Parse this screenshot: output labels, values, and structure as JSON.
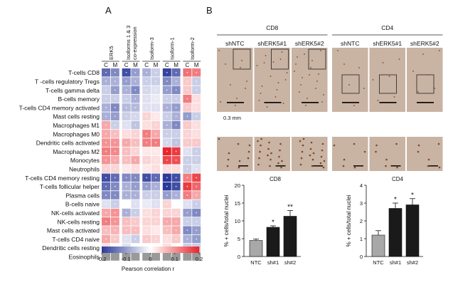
{
  "panel_a": {
    "letter": "A",
    "columns": [
      "ERK5",
      "Isoforms 1 & 3 co-expression",
      "Isoform-3",
      "Isoform-1",
      "Isoform-2"
    ],
    "subcolumns": [
      "C",
      "M"
    ],
    "rows": [
      "T-cells CD8",
      "T -cells regulatory Tregs",
      "T-cells gamma delta",
      "B-cells memory",
      "T-cells CD4 memory activated",
      "Mast cells resting",
      "Macrophages M1",
      "Macrophages M0",
      "Dendritic cells activated",
      "Macrophages M2",
      "Monocytes",
      "Neutrophils",
      "T-cells CD4 memory resting",
      "T-cells follicular helper",
      "Plasma cells",
      "B-cells naive",
      "NK-cells activated",
      "NK-cells resting",
      "Mast cells activated",
      "T-cells CD4 naive",
      "Dendritic cells resting",
      "Eosinophils"
    ],
    "colorbar": {
      "ticks": [
        "-0.2",
        "-0.1",
        "0",
        "0.1",
        "0.2"
      ],
      "label": "Pearson correlation r",
      "low_color": "#2b3a9a",
      "mid_color": "#ffffff",
      "high_color": "#e8262b",
      "na_color": "#999999"
    },
    "chart_data": {
      "type": "heatmap",
      "xlabel": "",
      "ylabel": "",
      "value_range": [
        -0.2,
        0.2
      ],
      "columns": [
        "ERK5 C",
        "ERK5 M",
        "Iso1&3 C",
        "Iso1&3 M",
        "Iso3 C",
        "Iso3 M",
        "Iso1 C",
        "Iso1 M",
        "Iso2 C",
        "Iso2 M"
      ],
      "values": [
        [
          -0.15,
          -0.12,
          -0.18,
          -0.1,
          -0.08,
          -0.05,
          -0.19,
          -0.15,
          0.13,
          0.12
        ],
        [
          -0.08,
          -0.08,
          -0.1,
          -0.08,
          -0.05,
          -0.05,
          -0.12,
          -0.08,
          0.05,
          -0.05
        ],
        [
          -0.05,
          -0.1,
          -0.08,
          -0.12,
          -0.04,
          -0.03,
          -0.1,
          -0.12,
          0.05,
          -0.05
        ],
        [
          -0.05,
          -0.05,
          -0.05,
          -0.08,
          -0.03,
          -0.02,
          -0.05,
          -0.05,
          0.12,
          0.03
        ],
        [
          -0.08,
          -0.12,
          -0.07,
          -0.07,
          -0.03,
          -0.03,
          -0.08,
          -0.1,
          0.05,
          0.03
        ],
        [
          -0.08,
          -0.1,
          -0.05,
          -0.04,
          0.04,
          0.02,
          -0.05,
          -0.08,
          -0.1,
          -0.05
        ],
        [
          0.08,
          -0.05,
          -0.03,
          -0.06,
          0.03,
          0.04,
          -0.08,
          -0.12,
          0.05,
          0.03
        ],
        [
          0.08,
          0.06,
          0.03,
          0.04,
          0.12,
          0.08,
          -0.05,
          -0.05,
          0.04,
          0.03
        ],
        [
          0.1,
          0.1,
          0.08,
          0.06,
          0.12,
          0.12,
          -0.04,
          -0.06,
          0.05,
          0.05
        ],
        [
          0.12,
          0.11,
          0.06,
          0.04,
          0.02,
          0.02,
          0.2,
          0.18,
          -0.03,
          -0.05
        ],
        [
          0.1,
          0.08,
          0.06,
          0.08,
          0.04,
          0.03,
          0.17,
          0.16,
          -0.05,
          -0.05
        ],
        [
          0.04,
          0.04,
          0.02,
          0.03,
          0.02,
          0.03,
          0.03,
          0.03,
          -0.05,
          -0.03
        ],
        [
          -0.18,
          -0.15,
          -0.12,
          -0.12,
          -0.18,
          -0.15,
          -0.2,
          -0.18,
          0.12,
          0.17
        ],
        [
          -0.15,
          -0.12,
          -0.08,
          -0.1,
          -0.1,
          -0.08,
          -0.2,
          -0.18,
          0.18,
          0.14
        ],
        [
          -0.12,
          -0.12,
          -0.08,
          -0.08,
          -0.05,
          -0.05,
          -0.1,
          -0.08,
          0.12,
          0.08
        ],
        [
          -0.03,
          -0.05,
          0.0,
          -0.03,
          -0.02,
          -0.03,
          0.04,
          0.0,
          -0.03,
          -0.05
        ],
        [
          0.08,
          0.1,
          -0.08,
          -0.05,
          0.03,
          0.04,
          0.04,
          0.04,
          -0.1,
          -0.12
        ],
        [
          0.12,
          0.1,
          0.06,
          0.05,
          0.04,
          0.04,
          0.08,
          0.08,
          -0.05,
          -0.05
        ],
        [
          0.06,
          0.07,
          0.06,
          0.06,
          0.03,
          0.02,
          0.06,
          0.08,
          -0.12,
          -0.1
        ],
        [
          0.08,
          0.05,
          -0.03,
          -0.05,
          0.05,
          0.04,
          0.03,
          0.05,
          -0.08,
          -0.1
        ],
        [
          0.03,
          0.0,
          -0.03,
          0.0,
          0.0,
          0.0,
          0.03,
          0.0,
          -0.05,
          -0.05
        ],
        [
          null,
          null,
          null,
          null,
          null,
          null,
          null,
          null,
          null,
          null
        ]
      ]
    }
  },
  "panel_b": {
    "letter": "B",
    "groups": [
      {
        "title": "CD8",
        "conditions": [
          "shNTC",
          "shERK5#1",
          "shERK5#2"
        ]
      },
      {
        "title": "CD4",
        "conditions": [
          "shNTC",
          "shERK5#1",
          "shERK5#2"
        ]
      }
    ],
    "scale_label": "0.3 mm",
    "tissue_color": "#c9b3a3",
    "stain_color": "#7a4a2a",
    "bar_charts": [
      {
        "type": "bar",
        "title": "CD8",
        "categories": [
          "NTC",
          "sh#1",
          "sh#2"
        ],
        "values": [
          4.5,
          8.2,
          11.3
        ],
        "errors": [
          0.4,
          0.4,
          1.6
        ],
        "significance": [
          "",
          "*",
          "**"
        ],
        "ylabel": "% + cells/total nuclei",
        "yticks": [
          "0",
          "5",
          "10",
          "15",
          "20"
        ],
        "ylim": [
          0,
          20
        ],
        "colors": [
          "#a8a8a8",
          "#1a1a1a",
          "#1a1a1a"
        ]
      },
      {
        "type": "bar",
        "title": "CD4",
        "categories": [
          "NTC",
          "sh#1",
          "sh#2"
        ],
        "values": [
          1.2,
          2.7,
          2.9
        ],
        "errors": [
          0.25,
          0.3,
          0.35
        ],
        "significance": [
          "",
          "*",
          "*"
        ],
        "ylabel": "% + cells/total nuclei",
        "yticks": [
          "0",
          "1",
          "2",
          "3",
          "4"
        ],
        "ylim": [
          0,
          4
        ],
        "colors": [
          "#a8a8a8",
          "#1a1a1a",
          "#1a1a1a"
        ]
      }
    ]
  }
}
